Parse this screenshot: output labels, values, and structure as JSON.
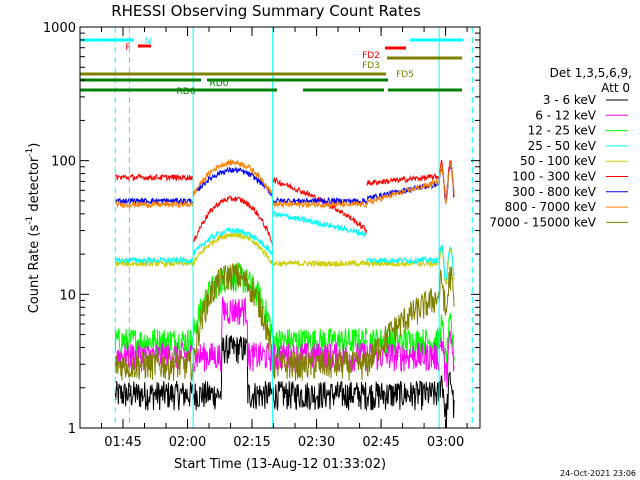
{
  "chart_data": {
    "type": "line",
    "title": "RHESSI Observing Summary Count Rates",
    "xlabel": "Start Time (13-Aug-12 01:33:02)",
    "ylabel": "Count Rate (s",
    "ylabel_sup": "-1",
    "ylabel_tail": " detector",
    "ylabel_sup2": "-1",
    "ylabel_end": ")",
    "y_scale": "log",
    "ylim": [
      1,
      1000
    ],
    "xlim": [
      "01:35",
      "03:08"
    ],
    "x_ticks": [
      "01:45",
      "02:00",
      "02:15",
      "02:30",
      "02:45",
      "03:00"
    ],
    "y_ticks": [
      "1",
      "10",
      "100",
      "1000"
    ],
    "legend": {
      "header1": "Det 1,3,5,6,9,",
      "header2": "Att 0",
      "placement": "right"
    },
    "series": [
      {
        "name": "3 - 6 keV",
        "color": "#000000",
        "level": 1.8
      },
      {
        "name": "6 - 12 keV",
        "color": "#ff00ff",
        "level": 3.5
      },
      {
        "name": "12 - 25 keV",
        "color": "#00ff00",
        "level": 4.5
      },
      {
        "name": "25 - 50 keV",
        "color": "#00ffff",
        "level": 18
      },
      {
        "name": "50 - 100 keV",
        "color": "#cccc00",
        "level": 17
      },
      {
        "name": "100 - 300 keV",
        "color": "#ff0000",
        "level": 75
      },
      {
        "name": "300 - 800 keV",
        "color": "#0000ff",
        "level": 50
      },
      {
        "name": "800 - 7000 keV",
        "color": "#ff8000",
        "level": 47
      },
      {
        "name": "7000 - 15000 keV",
        "color": "#808000",
        "level": 3.0
      }
    ],
    "annotations": {
      "flags": [
        {
          "label": "N",
          "color": "#00ffff"
        },
        {
          "label": "F",
          "color": "#ff0000"
        },
        {
          "label": "FD2",
          "color": "#ff0000"
        },
        {
          "label": "FD3",
          "color": "#808000"
        },
        {
          "label": "FD5",
          "color": "#808000"
        },
        {
          "label": "RD0",
          "color": "#008000"
        },
        {
          "label": "RD6",
          "color": "#008000"
        }
      ]
    },
    "footer_timestamp": "24-Oct-2021 23:06"
  }
}
